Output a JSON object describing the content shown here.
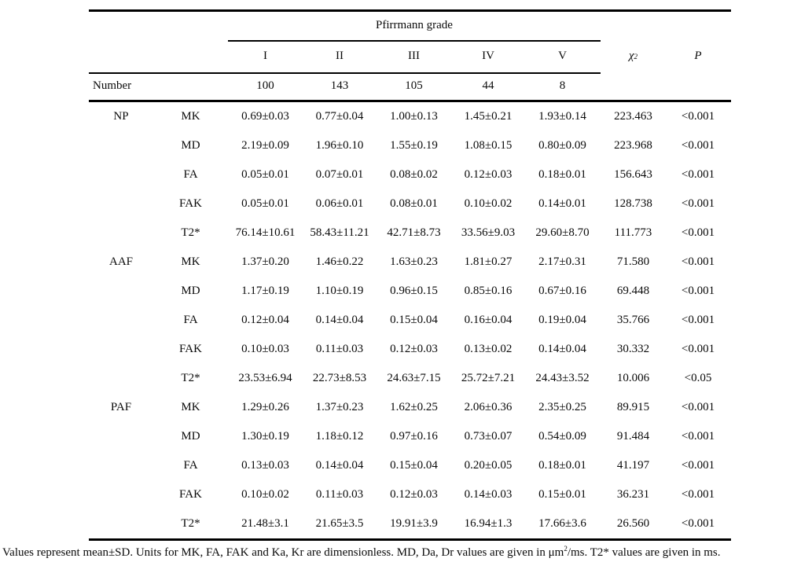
{
  "table": {
    "header": {
      "span_title": "Pfirrmann grade",
      "grades": [
        "I",
        "II",
        "III",
        "IV",
        "V"
      ],
      "chi_base": "χ",
      "chi_sup": "2",
      "p_label": "P"
    },
    "number_row": {
      "label": "Number",
      "values": [
        "100",
        "143",
        "105",
        "44",
        "8"
      ]
    },
    "rows": [
      {
        "group": "NP",
        "param": "MK",
        "g1": "0.69±0.03",
        "g2": "0.77±0.04",
        "g3": "1.00±0.13",
        "g4": "1.45±0.21",
        "g5": "1.93±0.14",
        "chi2": "223.463",
        "p": "<0.001"
      },
      {
        "group": "",
        "param": "MD",
        "g1": "2.19±0.09",
        "g2": "1.96±0.10",
        "g3": "1.55±0.19",
        "g4": "1.08±0.15",
        "g5": "0.80±0.09",
        "chi2": "223.968",
        "p": "<0.001"
      },
      {
        "group": "",
        "param": "FA",
        "g1": "0.05±0.01",
        "g2": "0.07±0.01",
        "g3": "0.08±0.02",
        "g4": "0.12±0.03",
        "g5": "0.18±0.01",
        "chi2": "156.643",
        "p": "<0.001"
      },
      {
        "group": "",
        "param": "FAK",
        "g1": "0.05±0.01",
        "g2": "0.06±0.01",
        "g3": "0.08±0.01",
        "g4": "0.10±0.02",
        "g5": "0.14±0.01",
        "chi2": "128.738",
        "p": "<0.001"
      },
      {
        "group": "",
        "param": "T2*",
        "g1": "76.14±10.61",
        "g2": "58.43±11.21",
        "g3": "42.71±8.73",
        "g4": "33.56±9.03",
        "g5": "29.60±8.70",
        "chi2": "111.773",
        "p": "<0.001"
      },
      {
        "group": "AAF",
        "param": "MK",
        "g1": "1.37±0.20",
        "g2": "1.46±0.22",
        "g3": "1.63±0.23",
        "g4": "1.81±0.27",
        "g5": "2.17±0.31",
        "chi2": "71.580",
        "p": "<0.001"
      },
      {
        "group": "",
        "param": "MD",
        "g1": "1.17±0.19",
        "g2": "1.10±0.19",
        "g3": "0.96±0.15",
        "g4": "0.85±0.16",
        "g5": "0.67±0.16",
        "chi2": "69.448",
        "p": "<0.001"
      },
      {
        "group": "",
        "param": "FA",
        "g1": "0.12±0.04",
        "g2": "0.14±0.04",
        "g3": "0.15±0.04",
        "g4": "0.16±0.04",
        "g5": "0.19±0.04",
        "chi2": "35.766",
        "p": "<0.001"
      },
      {
        "group": "",
        "param": "FAK",
        "g1": "0.10±0.03",
        "g2": "0.11±0.03",
        "g3": "0.12±0.03",
        "g4": "0.13±0.02",
        "g5": "0.14±0.04",
        "chi2": "30.332",
        "p": "<0.001"
      },
      {
        "group": "",
        "param": "T2*",
        "g1": "23.53±6.94",
        "g2": "22.73±8.53",
        "g3": "24.63±7.15",
        "g4": "25.72±7.21",
        "g5": "24.43±3.52",
        "chi2": "10.006",
        "p": "<0.05"
      },
      {
        "group": "PAF",
        "param": "MK",
        "g1": "1.29±0.26",
        "g2": "1.37±0.23",
        "g3": "1.62±0.25",
        "g4": "2.06±0.36",
        "g5": "2.35±0.25",
        "chi2": "89.915",
        "p": "<0.001"
      },
      {
        "group": "",
        "param": "MD",
        "g1": "1.30±0.19",
        "g2": "1.18±0.12",
        "g3": "0.97±0.16",
        "g4": "0.73±0.07",
        "g5": "0.54±0.09",
        "chi2": "91.484",
        "p": "<0.001"
      },
      {
        "group": "",
        "param": "FA",
        "g1": "0.13±0.03",
        "g2": "0.14±0.04",
        "g3": "0.15±0.04",
        "g4": "0.20±0.05",
        "g5": "0.18±0.01",
        "chi2": "41.197",
        "p": "<0.001"
      },
      {
        "group": "",
        "param": "FAK",
        "g1": "0.10±0.02",
        "g2": "0.11±0.03",
        "g3": "0.12±0.03",
        "g4": "0.14±0.03",
        "g5": "0.15±0.01",
        "chi2": "36.231",
        "p": "<0.001"
      },
      {
        "group": "",
        "param": "T2*",
        "g1": "21.48±3.1",
        "g2": "21.65±3.5",
        "g3": "19.91±3.9",
        "g4": "16.94±1.3",
        "g5": "17.66±3.6",
        "chi2": "26.560",
        "p": "<0.001"
      }
    ]
  },
  "footnote": {
    "before_sup": "Values represent mean±SD. Units for MK, FA, FAK and Ka, Kr are dimensionless. MD, Da, Dr values are given in μm",
    "sup": "2",
    "after_sup": "/ms. T2* values are given in ms."
  }
}
